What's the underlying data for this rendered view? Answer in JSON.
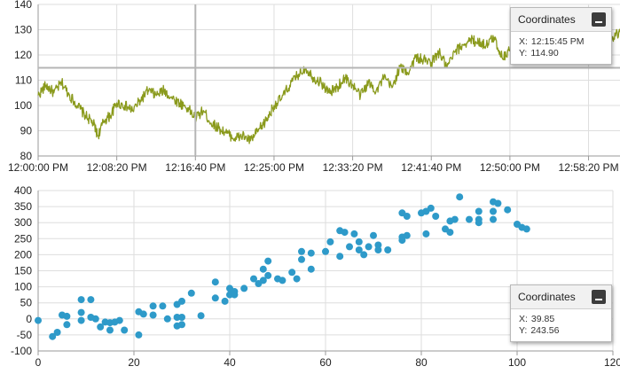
{
  "chart_data": [
    {
      "type": "line",
      "x_ticks": [
        "12:00:00 PM",
        "12:08:20 PM",
        "12:16:40 PM",
        "12:25:00 PM",
        "12:33:20 PM",
        "12:41:40 PM",
        "12:50:00 PM",
        "12:58:20 PM"
      ],
      "ylim": [
        80,
        140
      ],
      "y_ticks": [
        80,
        90,
        100,
        110,
        120,
        130,
        140
      ],
      "x_range_seconds": [
        0,
        3700
      ],
      "grid": true,
      "series": [
        {
          "color": "#8a9a1c",
          "values": [
            [
              0,
              104
            ],
            [
              50,
              108
            ],
            [
              100,
              105
            ],
            [
              150,
              109
            ],
            [
              200,
              104
            ],
            [
              250,
              100
            ],
            [
              300,
              96
            ],
            [
              350,
              93
            ],
            [
              380,
              88
            ],
            [
              420,
              94
            ],
            [
              460,
              96
            ],
            [
              500,
              101
            ],
            [
              550,
              100
            ],
            [
              600,
              98
            ],
            [
              650,
              102
            ],
            [
              700,
              106
            ],
            [
              750,
              104
            ],
            [
              800,
              106
            ],
            [
              850,
              103
            ],
            [
              900,
              101
            ],
            [
              950,
              99
            ],
            [
              1000,
              95
            ],
            [
              1050,
              98
            ],
            [
              1100,
              93
            ],
            [
              1150,
              91
            ],
            [
              1200,
              89
            ],
            [
              1250,
              87
            ],
            [
              1300,
              88
            ],
            [
              1350,
              86
            ],
            [
              1400,
              90
            ],
            [
              1450,
              94
            ],
            [
              1500,
              100
            ],
            [
              1550,
              103
            ],
            [
              1600,
              108
            ],
            [
              1650,
              112
            ],
            [
              1700,
              115
            ],
            [
              1750,
              111
            ],
            [
              1800,
              109
            ],
            [
              1850,
              105
            ],
            [
              1900,
              107
            ],
            [
              1950,
              111
            ],
            [
              2000,
              108
            ],
            [
              2050,
              104
            ],
            [
              2100,
              109
            ],
            [
              2150,
              106
            ],
            [
              2200,
              111
            ],
            [
              2250,
              107
            ],
            [
              2300,
              115
            ],
            [
              2350,
              113
            ],
            [
              2400,
              119
            ],
            [
              2450,
              118
            ],
            [
              2500,
              117
            ],
            [
              2550,
              121
            ],
            [
              2600,
              115
            ],
            [
              2650,
              121
            ],
            [
              2700,
              124
            ],
            [
              2750,
              126
            ],
            [
              2800,
              125
            ],
            [
              2850,
              124
            ],
            [
              2900,
              127
            ],
            [
              2950,
              119
            ],
            [
              3000,
              122
            ],
            [
              3050,
              126
            ],
            [
              3100,
              128
            ],
            [
              3150,
              131
            ],
            [
              3200,
              125
            ],
            [
              3250,
              129
            ],
            [
              3300,
              123
            ],
            [
              3350,
              127
            ],
            [
              3400,
              121
            ],
            [
              3450,
              120
            ],
            [
              3500,
              123
            ],
            [
              3550,
              118
            ],
            [
              3600,
              122
            ],
            [
              3650,
              127
            ],
            [
              3700,
              129
            ]
          ]
        }
      ],
      "crosshair": {
        "x_seconds": 1000,
        "y": 114.9
      }
    },
    {
      "type": "scatter",
      "xlim": [
        0,
        120
      ],
      "ylim": [
        -100,
        400
      ],
      "x_ticks": [
        0,
        20,
        40,
        60,
        80,
        100,
        120
      ],
      "y_ticks": [
        -100,
        -50,
        0,
        50,
        100,
        150,
        200,
        250,
        300,
        350,
        400
      ],
      "grid": true,
      "series": [
        {
          "color": "#2e9ac9",
          "points": [
            [
              0,
              -5
            ],
            [
              3,
              -55
            ],
            [
              4,
              -42
            ],
            [
              5,
              12
            ],
            [
              6,
              8
            ],
            [
              6,
              -18
            ],
            [
              9,
              60
            ],
            [
              9,
              20
            ],
            [
              9,
              -5
            ],
            [
              11,
              60
            ],
            [
              11,
              5
            ],
            [
              12,
              0
            ],
            [
              13,
              -25
            ],
            [
              14,
              -10
            ],
            [
              15,
              -12
            ],
            [
              15,
              -35
            ],
            [
              16,
              -10
            ],
            [
              17,
              -5
            ],
            [
              18,
              -35
            ],
            [
              21,
              22
            ],
            [
              21,
              -50
            ],
            [
              22,
              15
            ],
            [
              24,
              40
            ],
            [
              24,
              12
            ],
            [
              26,
              40
            ],
            [
              27,
              0
            ],
            [
              29,
              45
            ],
            [
              29,
              5
            ],
            [
              29,
              -22
            ],
            [
              30,
              5
            ],
            [
              30,
              -18
            ],
            [
              30,
              55
            ],
            [
              32,
              80
            ],
            [
              34,
              10
            ],
            [
              37,
              115
            ],
            [
              37,
              65
            ],
            [
              39,
              55
            ],
            [
              40,
              95
            ],
            [
              40,
              75
            ],
            [
              41,
              85
            ],
            [
              41,
              75
            ],
            [
              43,
              95
            ],
            [
              45,
              125
            ],
            [
              46,
              110
            ],
            [
              47,
              155
            ],
            [
              47,
              120
            ],
            [
              48,
              180
            ],
            [
              48,
              135
            ],
            [
              50,
              125
            ],
            [
              51,
              120
            ],
            [
              53,
              145
            ],
            [
              54,
              125
            ],
            [
              55,
              210
            ],
            [
              55,
              185
            ],
            [
              57,
              155
            ],
            [
              57,
              205
            ],
            [
              60,
              210
            ],
            [
              61,
              240
            ],
            [
              63,
              275
            ],
            [
              63,
              195
            ],
            [
              64,
              270
            ],
            [
              65,
              225
            ],
            [
              66,
              265
            ],
            [
              67,
              240
            ],
            [
              67,
              215
            ],
            [
              68,
              200
            ],
            [
              69,
              225
            ],
            [
              70,
              260
            ],
            [
              71,
              230
            ],
            [
              71,
              215
            ],
            [
              73,
              215
            ],
            [
              76,
              330
            ],
            [
              76,
              255
            ],
            [
              76,
              245
            ],
            [
              77,
              320
            ],
            [
              77,
              260
            ],
            [
              80,
              330
            ],
            [
              81,
              265
            ],
            [
              81,
              335
            ],
            [
              82,
              345
            ],
            [
              83,
              320
            ],
            [
              85,
              280
            ],
            [
              86,
              270
            ],
            [
              86,
              305
            ],
            [
              87,
              310
            ],
            [
              88,
              380
            ],
            [
              90,
              310
            ],
            [
              92,
              335
            ],
            [
              92,
              300
            ],
            [
              92,
              310
            ],
            [
              95,
              365
            ],
            [
              95,
              335
            ],
            [
              95,
              310
            ],
            [
              96,
              360
            ],
            [
              98,
              340
            ],
            [
              100,
              295
            ],
            [
              101,
              285
            ],
            [
              102,
              280
            ]
          ]
        }
      ]
    }
  ],
  "tooltips": [
    {
      "title": "Coordinates",
      "x_label": "X:",
      "x_value": "12:15:45 PM",
      "y_label": "Y:",
      "y_value": "114.90"
    },
    {
      "title": "Coordinates",
      "x_label": "X:",
      "x_value": "39.85",
      "y_label": "Y:",
      "y_value": "243.56"
    }
  ]
}
